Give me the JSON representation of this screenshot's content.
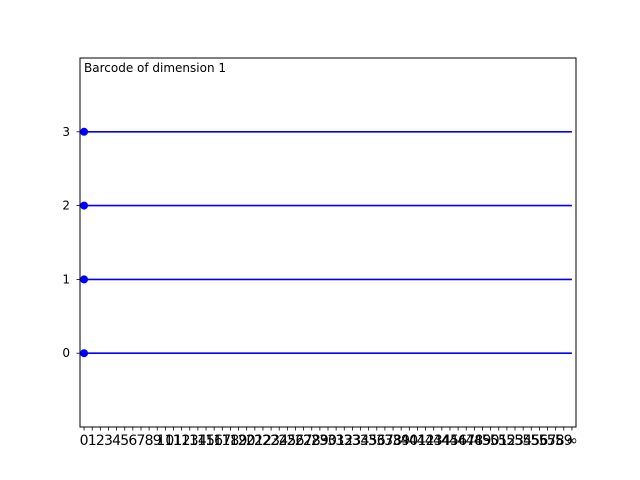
{
  "chart_data": {
    "type": "barcode",
    "title": "Barcode of dimension 1",
    "xlabel": "",
    "ylabel": "",
    "x_tick_labels": [
      "0",
      "1",
      "2",
      "3",
      "4",
      "5",
      "6",
      "7",
      "8",
      "9",
      "10",
      "11",
      "12",
      "13",
      "14",
      "15",
      "16",
      "17",
      "18",
      "19",
      "20",
      "21",
      "22",
      "23",
      "24",
      "25",
      "26",
      "27",
      "28",
      "29",
      "30",
      "31",
      "32",
      "33",
      "34",
      "35",
      "36",
      "37",
      "38",
      "39",
      "40",
      "41",
      "42",
      "43",
      "44",
      "45",
      "46",
      "47",
      "48",
      "49",
      "50",
      "51",
      "52",
      "53",
      "54",
      "55",
      "56",
      "57",
      "58",
      "59",
      "∞"
    ],
    "y_ticks": [
      0,
      1,
      2,
      3
    ],
    "xlim": [
      -0.5,
      60.5
    ],
    "ylim": [
      -1,
      4
    ],
    "bars": [
      {
        "index": 0,
        "birth": 0,
        "death": "∞"
      },
      {
        "index": 1,
        "birth": 0,
        "death": "∞"
      },
      {
        "index": 2,
        "birth": 0,
        "death": "∞"
      },
      {
        "index": 3,
        "birth": 0,
        "death": "∞"
      }
    ],
    "bar_color": "#0000ff",
    "grid": false
  }
}
